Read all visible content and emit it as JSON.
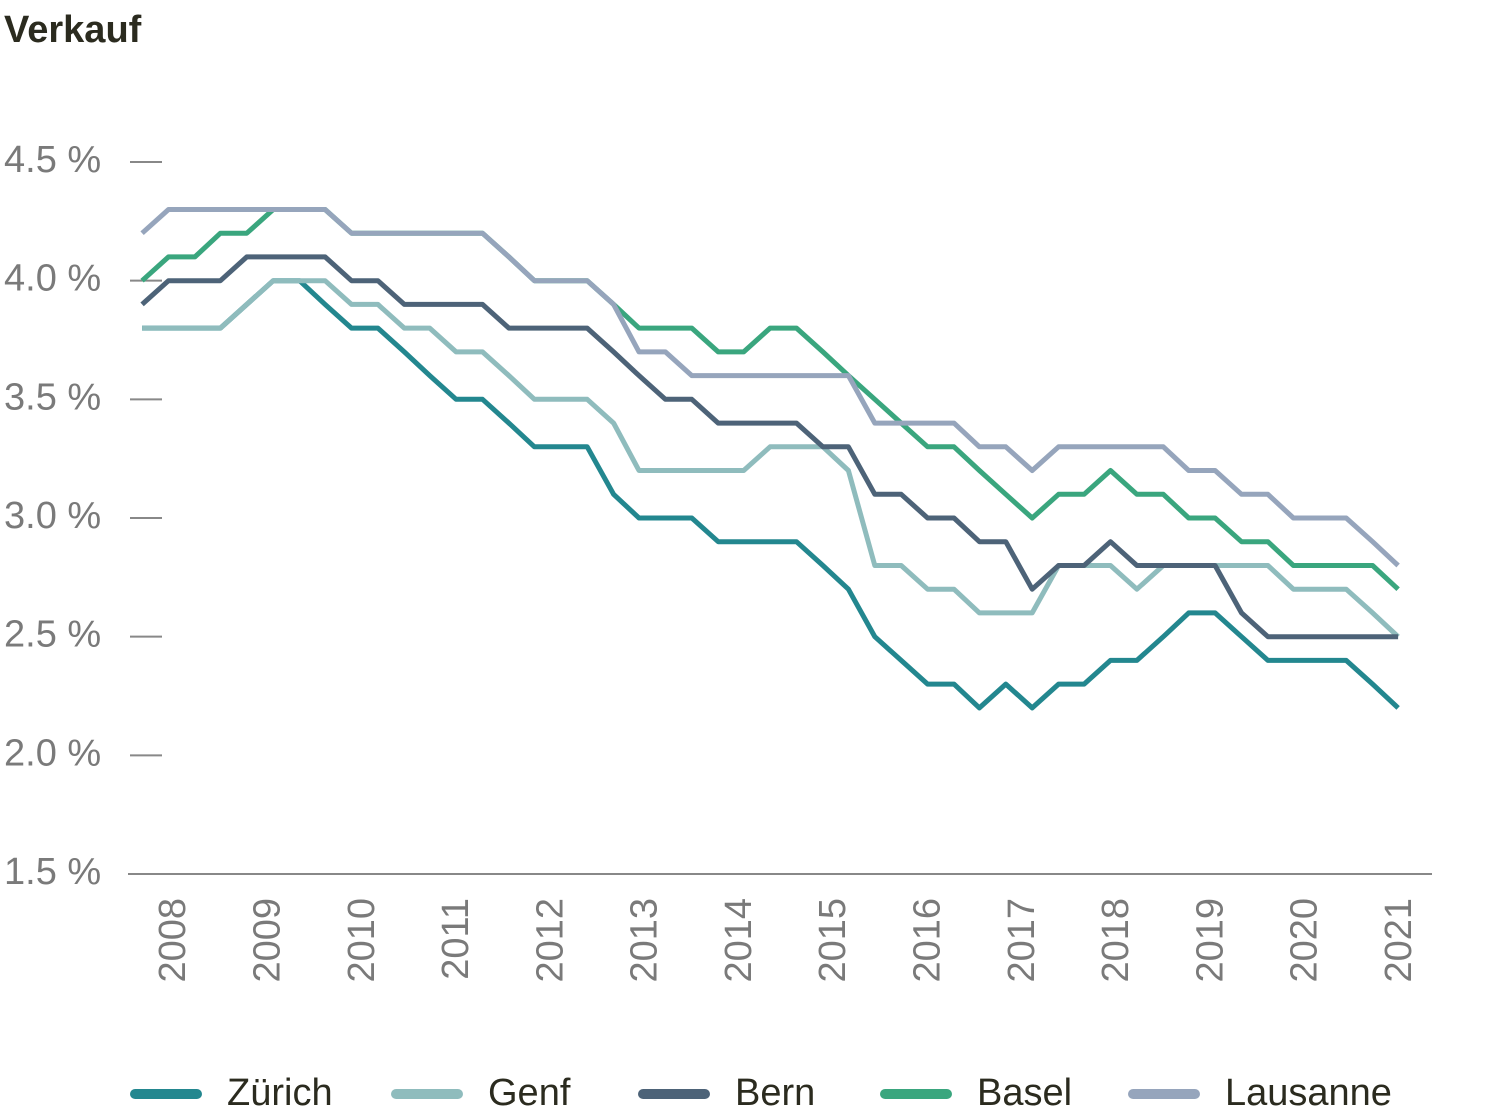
{
  "chart_data": {
    "type": "line",
    "title": "Verkauf",
    "x": [
      2007.65,
      2007.93,
      2008.21,
      2008.48,
      2008.76,
      2009.04,
      2009.32,
      2009.59,
      2009.87,
      2010.15,
      2010.43,
      2010.7,
      2010.98,
      2011.26,
      2011.54,
      2011.81,
      2012.09,
      2012.37,
      2012.65,
      2012.92,
      2013.2,
      2013.48,
      2013.76,
      2014.03,
      2014.31,
      2014.59,
      2014.87,
      2015.14,
      2015.42,
      2015.7,
      2015.98,
      2016.26,
      2016.53,
      2016.81,
      2017.09,
      2017.37,
      2017.64,
      2017.92,
      2018.2,
      2018.48,
      2018.75,
      2019.03,
      2019.31,
      2019.59,
      2019.86,
      2020.14,
      2020.42,
      2020.7,
      2020.97
    ],
    "series": [
      {
        "name": "Zürich",
        "color": "#23878f",
        "values": [
          3.8,
          3.8,
          3.8,
          3.8,
          3.9,
          4.0,
          4.0,
          3.9,
          3.8,
          3.8,
          3.7,
          3.6,
          3.5,
          3.5,
          3.4,
          3.3,
          3.3,
          3.3,
          3.1,
          3.0,
          3.0,
          3.0,
          2.9,
          2.9,
          2.9,
          2.9,
          2.8,
          2.7,
          2.5,
          2.4,
          2.3,
          2.3,
          2.2,
          2.3,
          2.2,
          2.3,
          2.3,
          2.4,
          2.4,
          2.5,
          2.6,
          2.6,
          2.5,
          2.4,
          2.4,
          2.4,
          2.4,
          2.3,
          2.2
        ]
      },
      {
        "name": "Genf",
        "color": "#8fbcbd",
        "values": [
          3.8,
          3.8,
          3.8,
          3.8,
          3.9,
          4.0,
          4.0,
          4.0,
          3.9,
          3.9,
          3.8,
          3.8,
          3.7,
          3.7,
          3.6,
          3.5,
          3.5,
          3.5,
          3.4,
          3.2,
          3.2,
          3.2,
          3.2,
          3.2,
          3.3,
          3.3,
          3.3,
          3.2,
          2.8,
          2.8,
          2.7,
          2.7,
          2.6,
          2.6,
          2.6,
          2.8,
          2.8,
          2.8,
          2.7,
          2.8,
          2.8,
          2.8,
          2.8,
          2.8,
          2.7,
          2.7,
          2.7,
          2.6,
          2.5
        ]
      },
      {
        "name": "Bern",
        "color": "#4d6378",
        "values": [
          3.9,
          4.0,
          4.0,
          4.0,
          4.1,
          4.1,
          4.1,
          4.1,
          4.0,
          4.0,
          3.9,
          3.9,
          3.9,
          3.9,
          3.8,
          3.8,
          3.8,
          3.8,
          3.7,
          3.6,
          3.5,
          3.5,
          3.4,
          3.4,
          3.4,
          3.4,
          3.3,
          3.3,
          3.1,
          3.1,
          3.0,
          3.0,
          2.9,
          2.9,
          2.7,
          2.8,
          2.8,
          2.9,
          2.8,
          2.8,
          2.8,
          2.8,
          2.6,
          2.5,
          2.5,
          2.5,
          2.5,
          2.5,
          2.5
        ]
      },
      {
        "name": "Basel",
        "color": "#3aa67e",
        "values": [
          4.0,
          4.1,
          4.1,
          4.2,
          4.2,
          4.3,
          4.3,
          4.3,
          4.2,
          4.2,
          4.2,
          4.2,
          4.2,
          4.2,
          4.1,
          4.0,
          4.0,
          4.0,
          3.9,
          3.8,
          3.8,
          3.8,
          3.7,
          3.7,
          3.8,
          3.8,
          3.7,
          3.6,
          3.5,
          3.4,
          3.3,
          3.3,
          3.2,
          3.1,
          3.0,
          3.1,
          3.1,
          3.2,
          3.1,
          3.1,
          3.0,
          3.0,
          2.9,
          2.9,
          2.8,
          2.8,
          2.8,
          2.8,
          2.7
        ]
      },
      {
        "name": "Lausanne",
        "color": "#96a5bc",
        "values": [
          4.2,
          4.3,
          4.3,
          4.3,
          4.3,
          4.3,
          4.3,
          4.3,
          4.2,
          4.2,
          4.2,
          4.2,
          4.2,
          4.2,
          4.1,
          4.0,
          4.0,
          4.0,
          3.9,
          3.7,
          3.7,
          3.6,
          3.6,
          3.6,
          3.6,
          3.6,
          3.6,
          3.6,
          3.4,
          3.4,
          3.4,
          3.4,
          3.3,
          3.3,
          3.2,
          3.3,
          3.3,
          3.3,
          3.3,
          3.3,
          3.2,
          3.2,
          3.1,
          3.1,
          3.0,
          3.0,
          3.0,
          2.9,
          2.8
        ]
      }
    ],
    "xlim": [
      2007.5,
      2021.33
    ],
    "xticks": [
      2008,
      2009,
      2010,
      2011,
      2012,
      2013,
      2014,
      2015,
      2016,
      2017,
      2018,
      2019,
      2020,
      2021
    ],
    "ylim": [
      1.5,
      4.5
    ],
    "yticks": [
      {
        "value": 1.5,
        "label": "1.5 %"
      },
      {
        "value": 2.0,
        "label": "2.0 %"
      },
      {
        "value": 2.5,
        "label": "2.5 %"
      },
      {
        "value": 3.0,
        "label": "3.0 %"
      },
      {
        "value": 3.5,
        "label": "3.5 %"
      },
      {
        "value": 4.0,
        "label": "4.0 %"
      },
      {
        "value": 4.5,
        "label": "4.5 %"
      }
    ],
    "grid": false,
    "legend": "bottom"
  }
}
